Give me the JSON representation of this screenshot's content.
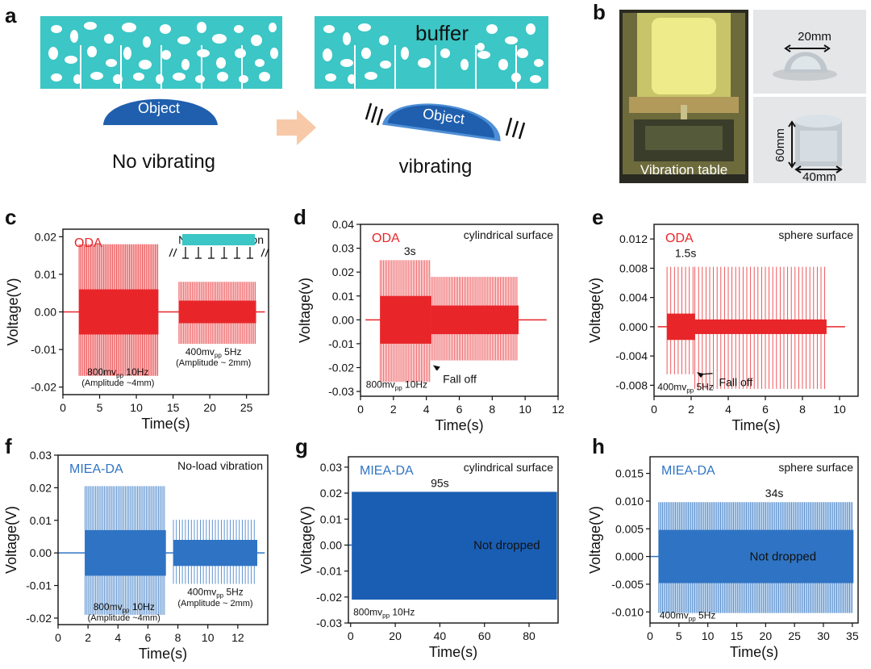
{
  "panels": {
    "a": {
      "letter": "a",
      "buffer_label": "buffer",
      "object_label_left": "Object",
      "object_label_right": "Object",
      "caption_left": "No vibrating",
      "caption_right": "vibrating"
    },
    "b": {
      "letter": "b",
      "table_label": "Vibration table",
      "sphere_dim": "20mm",
      "cyl_height": "60mm",
      "cyl_width": "40mm"
    }
  },
  "colors": {
    "buffer_teal": "#3cc6c6",
    "object_blue": "#1f5fae",
    "object_light": "#4e8fd6",
    "arrow_peach": "#f8c9a8",
    "oda_red": "#e8262a",
    "miea_blue": "#2f74c4",
    "miea_blue_dark": "#1a5eb3"
  },
  "chart_data": [
    {
      "id": "c",
      "letter": "c",
      "type": "line",
      "material": "ODA",
      "annotation": "No-load vibration",
      "xlabel": "Time(s)",
      "ylabel": "Voltage(V)",
      "xlim": [
        0,
        28
      ],
      "ylim": [
        -0.022,
        0.022
      ],
      "xticks": [
        0,
        5,
        10,
        15,
        20,
        25
      ],
      "yticks": [
        -0.02,
        -0.01,
        0.0,
        0.01,
        0.02
      ],
      "ytick_labels": [
        "-0.02",
        "-0.01",
        "0.00",
        "0.01",
        "0.02"
      ],
      "color": "#e8262a",
      "segments": [
        {
          "x0": 2.2,
          "x1": 13.0,
          "amp_pos": 0.018,
          "amp_neg": -0.017,
          "core": 0.006,
          "period": 0.1
        },
        {
          "x0": 15.8,
          "x1": 26.3,
          "amp_pos": 0.008,
          "amp_neg": -0.0085,
          "core": 0.003,
          "period": 0.2
        }
      ],
      "baseline_x": [
        0,
        27.5
      ],
      "notes": [
        {
          "text": "800mv",
          "sub": "pp",
          "rest": " 10Hz",
          "x": 7.5,
          "y": -0.0168
        },
        {
          "text": "(Amplitude ~4mm)",
          "x": 7.5,
          "y": -0.0196,
          "small": true
        },
        {
          "text": "400mv",
          "sub": "pp",
          "rest": " 5Hz",
          "x": 20.5,
          "y": -0.0115
        },
        {
          "text": "(Amplitude ~ 2mm)",
          "x": 20.5,
          "y": -0.0143,
          "small": true
        }
      ]
    },
    {
      "id": "d",
      "letter": "d",
      "type": "line",
      "material": "ODA",
      "annotation": "cylindrical surface",
      "xlabel": "Time(s)",
      "ylabel": "Voltage(v)",
      "xlim": [
        0,
        12
      ],
      "ylim": [
        -0.032,
        0.04
      ],
      "xticks": [
        0,
        2,
        4,
        6,
        8,
        10,
        12
      ],
      "yticks": [
        -0.03,
        -0.02,
        -0.01,
        0.0,
        0.01,
        0.02,
        0.03,
        0.04
      ],
      "ytick_labels": [
        "-0.03",
        "-0.02",
        "-0.01",
        "0.00",
        "0.01",
        "0.02",
        "0.03",
        "0.04"
      ],
      "color": "#e8262a",
      "segments": [
        {
          "x0": 1.2,
          "x1": 4.3,
          "amp_pos": 0.025,
          "amp_neg": -0.026,
          "core": 0.01,
          "period": 0.1
        },
        {
          "x0": 4.3,
          "x1": 9.6,
          "amp_pos": 0.018,
          "amp_neg": -0.017,
          "core": 0.006,
          "period": 0.1
        }
      ],
      "baseline_x": [
        0.3,
        11.3
      ],
      "marker": {
        "text": "3s",
        "x": 3.0,
        "y": 0.0265
      },
      "falloff": {
        "text": "Fall off",
        "x": 5.0,
        "y": -0.025,
        "arrow_to_x": 4.4,
        "arrow_to_y": -0.019
      },
      "notes": [
        {
          "text": "800mv",
          "sub": "pp",
          "rest": " 10Hz",
          "x": 2.2,
          "y": -0.0285
        }
      ]
    },
    {
      "id": "e",
      "letter": "e",
      "type": "line",
      "material": "ODA",
      "annotation": "sphere surface",
      "xlabel": "Time(s)",
      "ylabel": "Voltage(v)",
      "xlim": [
        0,
        11
      ],
      "ylim": [
        -0.0095,
        0.014
      ],
      "xticks": [
        0,
        2,
        4,
        6,
        8,
        10
      ],
      "yticks": [
        -0.008,
        -0.004,
        0.0,
        0.004,
        0.008,
        0.012
      ],
      "ytick_labels": [
        "-0.008",
        "-0.004",
        "0.000",
        "0.004",
        "0.008",
        "0.012"
      ],
      "color": "#e8262a",
      "segments": [
        {
          "x0": 0.7,
          "x1": 2.2,
          "amp_pos": 0.0082,
          "amp_neg": -0.0065,
          "core": 0.0018,
          "period": 0.2
        },
        {
          "x0": 2.2,
          "x1": 9.3,
          "amp_pos": 0.0082,
          "amp_neg": -0.0085,
          "core": 0.001,
          "period": 0.2
        }
      ],
      "baseline_x": [
        0.2,
        10.3
      ],
      "marker": {
        "text": "1.5s",
        "x": 1.7,
        "y": 0.0093
      },
      "falloff": {
        "text": "Fall off",
        "x": 3.5,
        "y": -0.0077,
        "arrow_to_x": 2.3,
        "arrow_to_y": -0.0062
      },
      "notes": [
        {
          "text": "400mv",
          "sub": "pp",
          "rest": " 5Hz",
          "x": 1.7,
          "y": -0.0087
        }
      ]
    },
    {
      "id": "f",
      "letter": "f",
      "type": "line",
      "material": "MIEA-DA",
      "annotation": "No-load vibration",
      "xlabel": "Time(s)",
      "ylabel": "Voltage(V)",
      "xlim": [
        0,
        14
      ],
      "ylim": [
        -0.022,
        0.03
      ],
      "xticks": [
        0,
        2,
        4,
        6,
        8,
        10,
        12
      ],
      "yticks": [
        -0.02,
        -0.01,
        0.0,
        0.01,
        0.02,
        0.03
      ],
      "ytick_labels": [
        "-0.02",
        "-0.01",
        "0.00",
        "0.01",
        "0.02",
        "0.03"
      ],
      "color": "#2f74c4",
      "segments": [
        {
          "x0": 1.8,
          "x1": 7.2,
          "amp_pos": 0.0205,
          "amp_neg": -0.019,
          "core": 0.007,
          "period": 0.1
        },
        {
          "x0": 7.7,
          "x1": 13.3,
          "amp_pos": 0.0102,
          "amp_neg": -0.0095,
          "core": 0.004,
          "period": 0.2
        }
      ],
      "baseline_x": [
        0,
        13.8
      ],
      "notes": [
        {
          "text": "800mv",
          "sub": "pp",
          "rest": " 10Hz",
          "x": 4.4,
          "y": -0.0175
        },
        {
          "text": "(Amplitude ~4mm)",
          "x": 4.4,
          "y": -0.0208,
          "small": true
        },
        {
          "text": "400mv",
          "sub": "pp",
          "rest": " 5Hz",
          "x": 10.5,
          "y": -0.013
        },
        {
          "text": "(Amplitude ~ 2mm)",
          "x": 10.5,
          "y": -0.0163,
          "small": true
        }
      ]
    },
    {
      "id": "g",
      "letter": "g",
      "type": "line",
      "material": "MIEA-DA",
      "annotation": "cylindrical surface",
      "xlabel": "Time(s)",
      "ylabel": "Voltage(V)",
      "xlim": [
        -1,
        93
      ],
      "ylim": [
        -0.03,
        0.034
      ],
      "xticks": [
        0,
        20,
        40,
        60,
        80
      ],
      "yticks": [
        -0.03,
        -0.02,
        -0.01,
        0.0,
        0.01,
        0.02,
        0.03
      ],
      "ytick_labels": [
        "-0.03",
        "-0.02",
        "-0.01",
        "0.00",
        "0.01",
        "0.02",
        "0.03"
      ],
      "color": "#1a5eb3",
      "segments": [
        {
          "x0": 0.5,
          "x1": 92.5,
          "amp_pos": 0.0205,
          "amp_neg": -0.021,
          "core": 0.02,
          "period": 0.1,
          "solid": true
        }
      ],
      "baseline_x": [
        -1,
        0.5
      ],
      "marker": {
        "text": "95s",
        "x": 40,
        "y": 0.0218
      },
      "status": {
        "text": "Not dropped",
        "x": 70,
        "y": 0.0
      },
      "notes": [
        {
          "text": "800mv",
          "sub": "pp",
          "rest": " 10Hz",
          "x": 15,
          "y": -0.027
        }
      ]
    },
    {
      "id": "h",
      "letter": "h",
      "type": "line",
      "material": "MIEA-DA",
      "annotation": "sphere surface",
      "xlabel": "Time(s)",
      "ylabel": "Voltage(V)",
      "xlim": [
        0,
        36
      ],
      "ylim": [
        -0.012,
        0.018
      ],
      "xticks": [
        0,
        5,
        10,
        15,
        20,
        25,
        30,
        35
      ],
      "yticks": [
        -0.01,
        -0.005,
        0.0,
        0.005,
        0.01,
        0.015
      ],
      "ytick_labels": [
        "-0.010",
        "-0.005",
        "0.000",
        "0.005",
        "0.010",
        "0.015"
      ],
      "color": "#2f74c4",
      "segments": [
        {
          "x0": 1.5,
          "x1": 35.2,
          "amp_pos": 0.0098,
          "amp_neg": -0.0102,
          "core": 0.0048,
          "period": 0.2
        }
      ],
      "baseline_x": [
        0,
        1.5
      ],
      "marker": {
        "text": "34s",
        "x": 21.5,
        "y": 0.0104
      },
      "status": {
        "text": "Not dropped",
        "x": 23,
        "y": 0.0
      },
      "notes": [
        {
          "text": "400mv",
          "sub": "pp",
          "rest": " 5Hz",
          "x": 6.5,
          "y": -0.0112
        }
      ]
    }
  ]
}
